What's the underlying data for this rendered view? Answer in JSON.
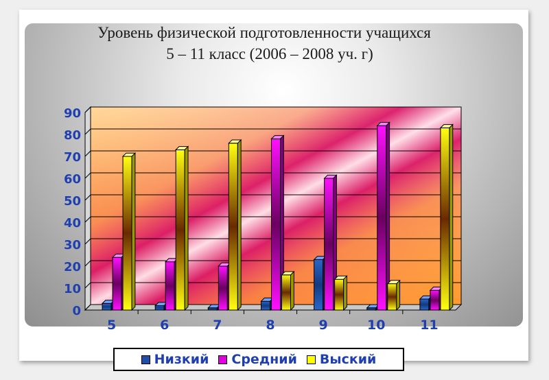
{
  "chart_data": {
    "type": "bar",
    "title": [
      "Уровень физической подготовленности учащихся",
      "5 – 11 класс (2006 – 2008 уч. г)"
    ],
    "categories": [
      "5",
      "6",
      "7",
      "8",
      "9",
      "10",
      "11"
    ],
    "series": [
      {
        "name": "Низкий",
        "values": [
          3,
          2,
          1,
          4,
          23,
          1,
          5
        ],
        "color": "#1f4fa8"
      },
      {
        "name": "Средний",
        "values": [
          24,
          22,
          20,
          78,
          60,
          84,
          9
        ],
        "color": "#e000e0"
      },
      {
        "name": "Выский",
        "values": [
          70,
          73,
          76,
          16,
          14,
          12,
          83
        ],
        "color": "#ffff00"
      }
    ],
    "ylim": [
      0,
      90
    ],
    "yticks": [
      0,
      10,
      20,
      30,
      40,
      50,
      60,
      70,
      80,
      90
    ],
    "grid": true,
    "legend_position": "bottom"
  }
}
